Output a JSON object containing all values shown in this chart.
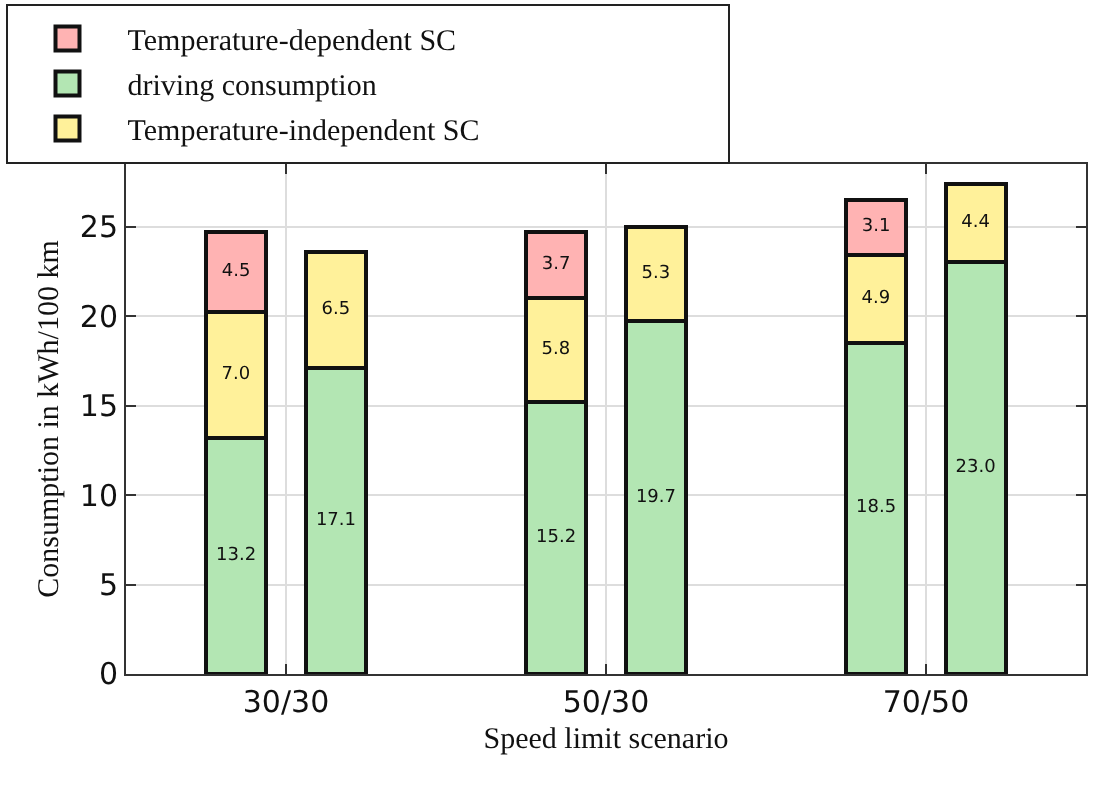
{
  "chart_data": {
    "type": "bar",
    "stacked": true,
    "xlabel": "Speed limit scenario",
    "ylabel": "Consumption in kWh/100 km",
    "categories": [
      null,
      null,
      null,
      null,
      null,
      null
    ],
    "annotations": [
      "30/30",
      "50/30",
      "70/50"
    ],
    "ylim": [
      0,
      28.5
    ],
    "yticks": [
      0,
      5,
      10,
      15,
      20,
      25
    ],
    "series": [
      {
        "name": "driving consumption",
        "color": "#b3e6b3",
        "values": [
          13.2,
          17.1,
          15.2,
          19.7,
          18.5,
          23.0
        ],
        "value_labels": [
          "13.2",
          "17.1",
          "15.2",
          "19.7",
          "18.5",
          "23.0"
        ]
      },
      {
        "name": "Temperature-independent SC",
        "color": "#fff19a",
        "values": [
          7.0,
          6.5,
          5.8,
          5.3,
          4.9,
          4.4
        ],
        "value_labels": [
          "7.0",
          "6.5",
          "5.8",
          "5.3",
          "4.9",
          "4.4"
        ]
      },
      {
        "name": "Temperature-dependent SC",
        "color": "#ffb3b3",
        "values": [
          4.5,
          null,
          3.7,
          null,
          3.1,
          null
        ],
        "value_labels": [
          "4.5",
          null,
          "3.7",
          null,
          "3.1",
          null
        ]
      }
    ],
    "grid": true,
    "legend": "top"
  }
}
